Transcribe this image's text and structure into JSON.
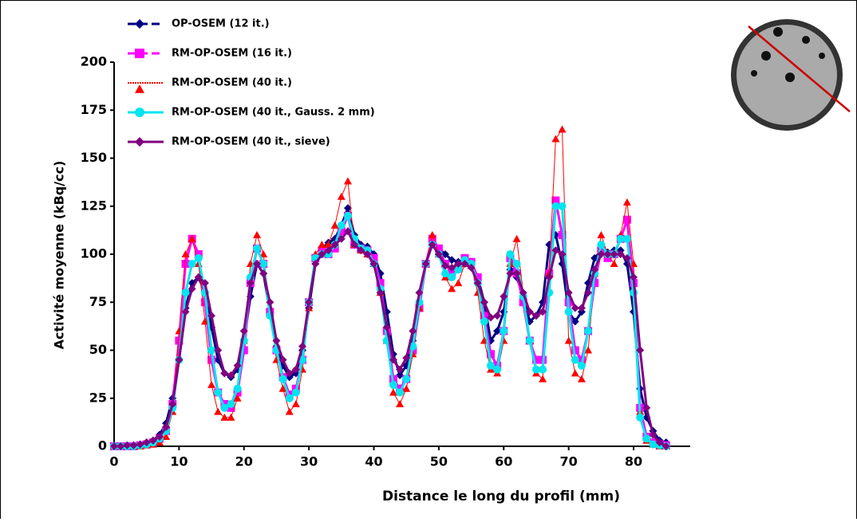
{
  "chart_data": {
    "type": "line",
    "xlabel": "Distance le long du profil (mm)",
    "ylabel": "Activité moyenne (kBq/cc)",
    "x": [
      0,
      1,
      2,
      3,
      4,
      5,
      6,
      7,
      8,
      9,
      10,
      11,
      12,
      13,
      14,
      15,
      16,
      17,
      18,
      19,
      20,
      21,
      22,
      23,
      24,
      25,
      26,
      27,
      28,
      29,
      30,
      31,
      32,
      33,
      34,
      35,
      36,
      37,
      38,
      39,
      40,
      41,
      42,
      43,
      44,
      45,
      46,
      47,
      48,
      49,
      50,
      51,
      52,
      53,
      54,
      55,
      56,
      57,
      58,
      59,
      60,
      61,
      62,
      63,
      64,
      65,
      66,
      67,
      68,
      69,
      70,
      71,
      72,
      73,
      74,
      75,
      76,
      77,
      78,
      79,
      80,
      81,
      82,
      83,
      84,
      85
    ],
    "xlim": [
      0,
      87
    ],
    "xticks": [
      0,
      10,
      20,
      30,
      40,
      50,
      60,
      70,
      80
    ],
    "ylim": [
      0,
      200
    ],
    "yticks": [
      0,
      25,
      50,
      75,
      100,
      125,
      150,
      175,
      200
    ],
    "grid": false,
    "series": [
      {
        "name": "OP-OSEM (12 it.)",
        "color": "#000080",
        "marker": "diamond",
        "values": [
          0,
          0,
          0,
          0.5,
          1,
          2,
          3,
          6,
          12,
          25,
          45,
          72,
          85,
          88,
          80,
          62,
          45,
          38,
          36,
          40,
          55,
          78,
          95,
          90,
          70,
          52,
          42,
          36,
          38,
          50,
          72,
          95,
          103,
          106,
          108,
          115,
          124,
          110,
          105,
          104,
          100,
          90,
          70,
          48,
          37,
          42,
          55,
          75,
          95,
          108,
          103,
          100,
          97,
          96,
          97,
          95,
          88,
          75,
          55,
          60,
          70,
          92,
          88,
          78,
          65,
          68,
          75,
          105,
          110,
          95,
          70,
          65,
          70,
          85,
          98,
          102,
          101,
          102,
          102,
          95,
          70,
          30,
          15,
          8,
          3,
          2
        ]
      },
      {
        "name": "RM-OP-OSEM (16 it.)",
        "color": "#ff00ff",
        "marker": "square",
        "values": [
          0,
          0,
          0,
          0,
          0.5,
          1,
          2,
          4,
          8,
          22,
          55,
          95,
          108,
          100,
          75,
          45,
          28,
          22,
          20,
          28,
          50,
          85,
          103,
          95,
          70,
          50,
          36,
          27,
          30,
          45,
          75,
          98,
          102,
          100,
          103,
          112,
          120,
          105,
          103,
          102,
          98,
          85,
          60,
          35,
          30,
          35,
          50,
          72,
          95,
          108,
          103,
          95,
          90,
          93,
          98,
          96,
          88,
          68,
          48,
          42,
          60,
          98,
          90,
          75,
          55,
          45,
          45,
          90,
          128,
          110,
          75,
          50,
          45,
          60,
          85,
          102,
          98,
          100,
          108,
          118,
          85,
          20,
          5,
          2,
          1,
          0.5
        ]
      },
      {
        "name": " RM-OP-OSEM (40 it.)",
        "color": "#ff0000",
        "marker": "triangle",
        "values": [
          0,
          0,
          0,
          0,
          0,
          0.5,
          1,
          2,
          5,
          18,
          60,
          100,
          108,
          95,
          65,
          32,
          18,
          15,
          15,
          25,
          55,
          95,
          110,
          100,
          70,
          45,
          30,
          18,
          22,
          40,
          72,
          100,
          105,
          105,
          115,
          130,
          138,
          105,
          102,
          100,
          95,
          80,
          55,
          28,
          22,
          30,
          48,
          72,
          95,
          110,
          100,
          88,
          82,
          85,
          95,
          94,
          80,
          55,
          40,
          38,
          55,
          95,
          108,
          80,
          55,
          38,
          35,
          90,
          160,
          165,
          55,
          38,
          35,
          50,
          90,
          110,
          100,
          95,
          110,
          127,
          95,
          18,
          3,
          1,
          0,
          0
        ]
      },
      {
        "name": "RM-OP-OSEM (40 it., Gauss. 2 mm)",
        "color": "#00e5ee",
        "marker": "circle",
        "values": [
          0,
          0,
          0,
          0,
          0.5,
          1,
          2,
          4,
          8,
          20,
          45,
          80,
          95,
          98,
          80,
          50,
          28,
          20,
          22,
          30,
          55,
          88,
          103,
          95,
          68,
          50,
          35,
          25,
          28,
          45,
          75,
          98,
          100,
          100,
          105,
          115,
          120,
          108,
          103,
          102,
          95,
          82,
          55,
          32,
          28,
          35,
          52,
          75,
          95,
          105,
          100,
          90,
          88,
          92,
          97,
          95,
          85,
          65,
          42,
          40,
          60,
          100,
          95,
          78,
          55,
          40,
          40,
          80,
          125,
          125,
          70,
          45,
          42,
          60,
          90,
          105,
          100,
          100,
          108,
          108,
          80,
          15,
          4,
          1,
          0.5,
          0
        ]
      },
      {
        "name": "RM-OP-OSEM (40 it., sieve)",
        "color": "#800080",
        "marker": "diamond",
        "values": [
          0,
          0,
          0.5,
          0.5,
          1,
          2,
          3,
          5,
          10,
          22,
          45,
          70,
          82,
          88,
          85,
          68,
          50,
          38,
          37,
          42,
          60,
          85,
          95,
          90,
          75,
          55,
          45,
          38,
          40,
          52,
          75,
          95,
          100,
          102,
          105,
          108,
          112,
          105,
          102,
          100,
          95,
          80,
          62,
          45,
          40,
          46,
          60,
          80,
          95,
          105,
          100,
          94,
          93,
          95,
          95,
          93,
          85,
          75,
          67,
          68,
          78,
          90,
          90,
          80,
          70,
          68,
          70,
          88,
          102,
          100,
          80,
          72,
          72,
          80,
          92,
          100,
          100,
          100,
          100,
          98,
          88,
          50,
          20,
          6,
          2,
          0
        ]
      }
    ]
  }
}
